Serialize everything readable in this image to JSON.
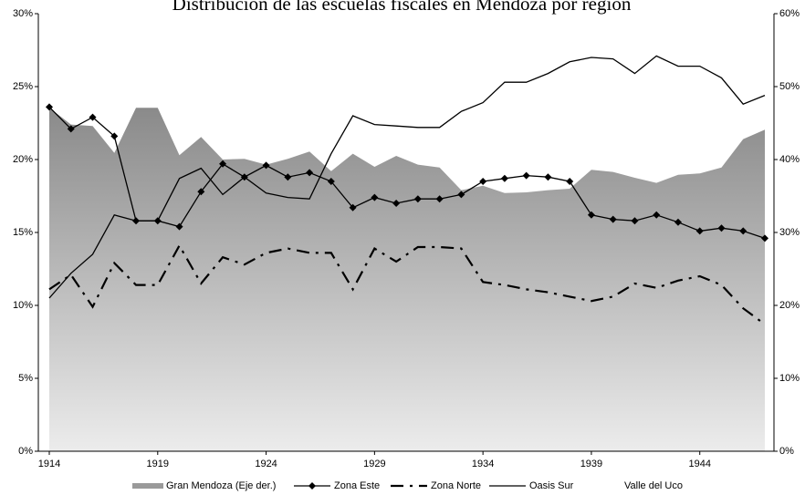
{
  "chart_data": {
    "type": "line",
    "title": "Distribución de las escuelas fiscales en Mendoza por región",
    "categories": [
      "1914",
      null,
      null,
      null,
      null,
      "1919",
      null,
      null,
      null,
      null,
      "1924",
      null,
      null,
      null,
      null,
      "1929",
      null,
      null,
      null,
      null,
      "1934",
      null,
      null,
      null,
      null,
      "1939",
      null,
      null,
      null,
      null,
      "1944",
      null,
      null,
      null
    ],
    "ylim": [
      0,
      30
    ],
    "yticks": [
      {
        "value": 0,
        "label": "0%"
      },
      {
        "value": 5,
        "label": "5%"
      },
      {
        "value": 10,
        "label": "10%"
      },
      {
        "value": 15,
        "label": "15%"
      },
      {
        "value": 20,
        "label": "20%"
      },
      {
        "value": 25,
        "label": "25%"
      },
      {
        "value": 30,
        "label": "30%"
      }
    ],
    "y2lim": [
      0,
      60
    ],
    "y2ticks": [
      {
        "value": 0,
        "label": "0%"
      },
      {
        "value": 10,
        "label": "10%"
      },
      {
        "value": 20,
        "label": "20%"
      },
      {
        "value": 30,
        "label": "30%"
      },
      {
        "value": 40,
        "label": "40%"
      },
      {
        "value": 50,
        "label": "50%"
      },
      {
        "value": 60,
        "label": "60%"
      }
    ],
    "series": [
      {
        "name": "Gran Mendoza (Eje der.)",
        "type": "area",
        "axis": "y2",
        "color": "#9a9a9a",
        "values": [
          47.1,
          44.8,
          44.6,
          40.9,
          47.1,
          47.1,
          40.6,
          43.1,
          40.0,
          40.1,
          39.3,
          40.1,
          41.1,
          38.4,
          40.8,
          39.0,
          40.5,
          39.3,
          38.9,
          35.8,
          36.4,
          35.4,
          35.5,
          35.8,
          36.0,
          38.6,
          38.3,
          37.5,
          36.8,
          37.9,
          38.1,
          38.9,
          42.8,
          44.1
        ]
      },
      {
        "name": "Zona Este",
        "type": "line",
        "color": "#000000",
        "marker": "diamond",
        "values": [
          23.6,
          22.1,
          22.9,
          21.6,
          15.8,
          15.8,
          15.4,
          17.8,
          19.7,
          18.8,
          19.6,
          18.8,
          19.1,
          18.5,
          16.7,
          17.4,
          17.0,
          17.3,
          17.3,
          17.6,
          18.5,
          18.7,
          18.9,
          18.8,
          18.5,
          16.2,
          15.9,
          15.8,
          16.2,
          15.7,
          15.1,
          15.3,
          15.1,
          14.6
        ]
      },
      {
        "name": "Zona Norte",
        "type": "line",
        "color": "#000000",
        "dash": "14,7,3,7",
        "values": [
          11.1,
          12.1,
          9.9,
          12.9,
          11.4,
          11.4,
          14.1,
          11.5,
          13.3,
          12.8,
          13.6,
          13.9,
          13.6,
          13.6,
          11.1,
          13.9,
          13.0,
          14.0,
          14.0,
          13.9,
          11.6,
          11.4,
          11.1,
          10.9,
          10.6,
          10.3,
          10.6,
          11.5,
          11.2,
          11.7,
          12.0,
          11.4,
          9.8,
          8.7
        ]
      },
      {
        "name": "Oasis Sur",
        "type": "line",
        "color": "#000000",
        "values": [
          10.5,
          12.2,
          13.5,
          16.2,
          15.8,
          15.8,
          18.7,
          19.4,
          17.6,
          18.8,
          17.7,
          17.4,
          17.3,
          20.4,
          23.0,
          22.4,
          22.3,
          22.2,
          22.2,
          23.3,
          23.9,
          25.3,
          25.3,
          25.9,
          26.7,
          27.0,
          26.9,
          25.9,
          27.1,
          26.4,
          26.4,
          25.6,
          23.8,
          24.4
        ]
      },
      {
        "name": "Valle del Uco",
        "type": "line",
        "color": "#ffffff",
        "values": [
          null,
          null,
          null,
          null,
          null,
          null,
          null,
          null,
          null,
          null,
          null,
          null,
          null,
          null,
          null,
          null,
          null,
          null,
          null,
          null,
          null,
          null,
          null,
          null,
          null,
          null,
          null,
          null,
          null,
          null,
          null,
          null,
          null,
          null
        ]
      }
    ]
  }
}
